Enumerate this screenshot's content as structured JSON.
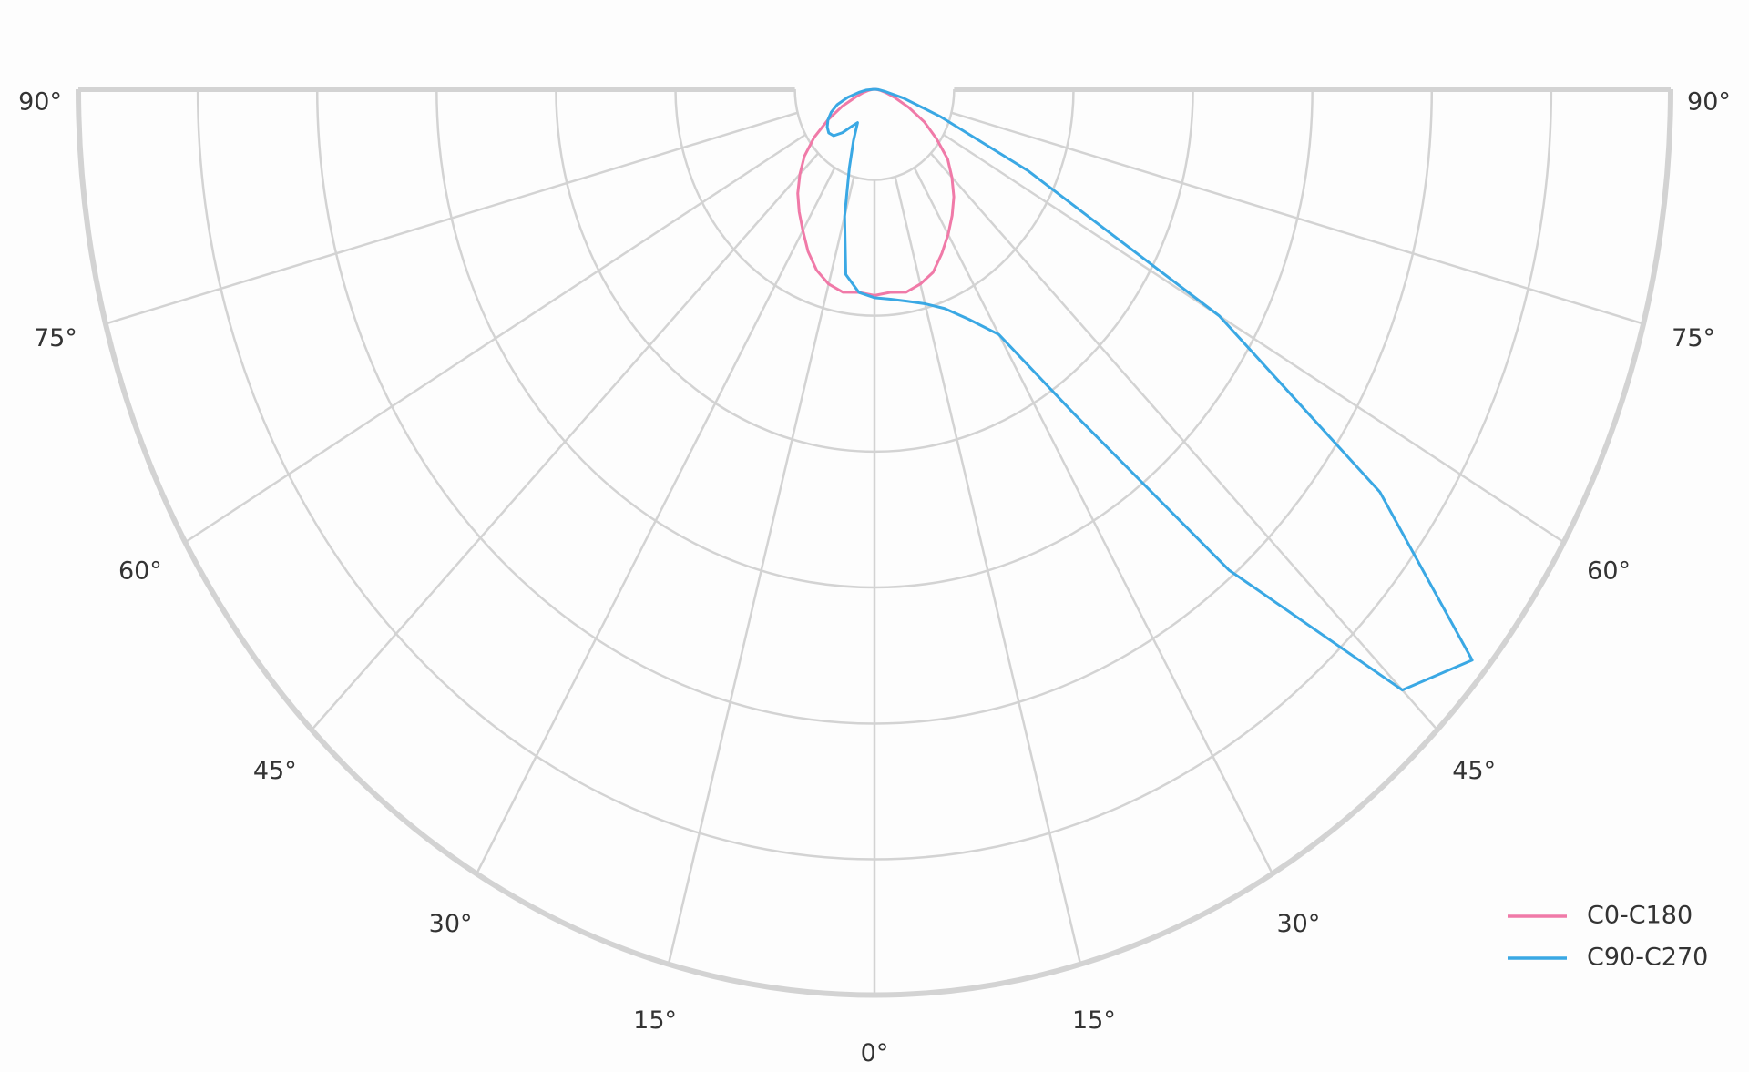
{
  "chart_data": {
    "type": "polar",
    "theta": [
      -90,
      -85,
      -80,
      -75,
      -70,
      -65,
      -60,
      -55,
      -50,
      -45,
      -40,
      -35,
      -30,
      -25,
      -20,
      -15,
      -10,
      -5,
      0,
      5,
      10,
      15,
      20,
      25,
      30,
      35,
      40,
      45,
      50,
      55,
      60,
      65,
      70,
      75,
      80,
      85,
      90
    ],
    "thetalim": [
      -90,
      90
    ],
    "thetaticks": [
      {
        "value": -90,
        "label": "90°"
      },
      {
        "value": -75,
        "label": "75°"
      },
      {
        "value": -60,
        "label": "60°"
      },
      {
        "value": -45,
        "label": "45°"
      },
      {
        "value": -30,
        "label": "30°"
      },
      {
        "value": -15,
        "label": "15°"
      },
      {
        "value": 0,
        "label": "0°"
      },
      {
        "value": 15,
        "label": "15°"
      },
      {
        "value": 30,
        "label": "30°"
      },
      {
        "value": 45,
        "label": "45°"
      },
      {
        "value": 60,
        "label": "60°"
      },
      {
        "value": 75,
        "label": "75°"
      },
      {
        "value": 90,
        "label": "90°"
      }
    ],
    "rlim": [
      0,
      400
    ],
    "rticks": [
      40,
      100,
      160,
      220,
      280,
      340,
      400
    ],
    "grid": true,
    "legend": "lower right",
    "series": [
      {
        "name": "C0-C180",
        "color": "#f07aa8",
        "values": [
          0,
          1,
          3,
          6,
          10,
          18,
          27,
          37,
          46,
          53,
          60,
          66,
          72,
          79,
          85,
          89,
          91,
          90,
          91,
          90,
          91,
          89,
          86,
          80,
          74,
          68,
          62,
          55,
          48,
          38,
          29,
          19,
          11,
          6,
          3,
          1,
          0
        ]
      },
      {
        "name": "C90-C270",
        "color": "#3aa8e4",
        "values": [
          0,
          4,
          8,
          14,
          20,
          24,
          27,
          29,
          30,
          29,
          25,
          20,
          17,
          25,
          37,
          58,
          83,
          90,
          92,
          93,
          95,
          98,
          103,
          112,
          125,
          175,
          277,
          375,
          392,
          310,
          200,
          85,
          35,
          15,
          5,
          2,
          0
        ]
      }
    ]
  }
}
